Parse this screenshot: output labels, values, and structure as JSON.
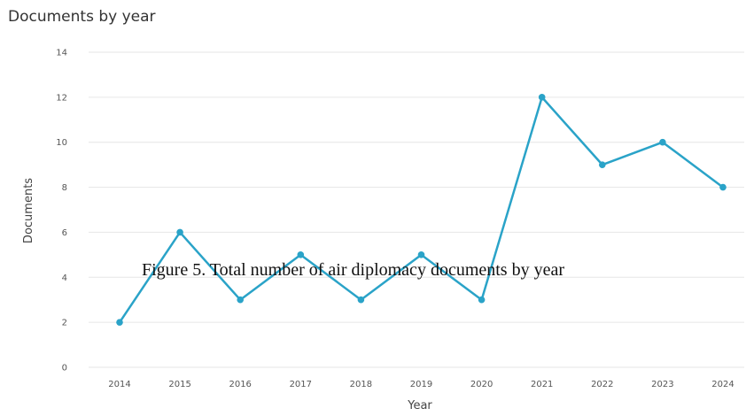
{
  "chart_data": {
    "type": "line",
    "title": "Documents by year",
    "xlabel": "Year",
    "ylabel": "Documents",
    "categories": [
      "2014",
      "2015",
      "2016",
      "2017",
      "2018",
      "2019",
      "2020",
      "2021",
      "2022",
      "2023",
      "2024"
    ],
    "values": [
      2,
      6,
      3,
      5,
      3,
      5,
      3,
      12,
      9,
      10,
      8
    ],
    "ylim": [
      0,
      14
    ],
    "yticks": [
      0,
      2,
      4,
      6,
      8,
      10,
      12,
      14
    ],
    "grid": true,
    "line_color": "#2aa3c8",
    "grid_color": "#e6e6e6"
  },
  "caption": "Figure 5. Total number of air diplomacy documents by year"
}
